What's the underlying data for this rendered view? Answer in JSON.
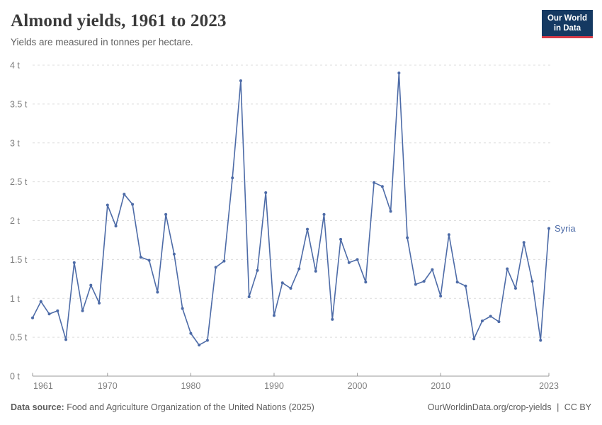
{
  "header": {
    "title": "Almond yields, 1961 to 2023",
    "subtitle": "Yields are measured in tonnes per hectare.",
    "logo": {
      "line1": "Our World",
      "line2": "in Data"
    }
  },
  "chart_data": {
    "type": "line",
    "title": "Almond yields, 1961 to 2023",
    "subtitle": "Yields are measured in tonnes per hectare.",
    "xlabel": "",
    "ylabel": "tonnes per hectare",
    "xlim": [
      1961,
      2023
    ],
    "ylim": [
      0,
      4
    ],
    "x_ticks": [
      1961,
      1970,
      1980,
      1990,
      2000,
      2010,
      2023
    ],
    "y_ticks": [
      0,
      0.5,
      1,
      1.5,
      2,
      2.5,
      3,
      3.5,
      4
    ],
    "y_tick_suffix": " t",
    "grid": "horizontal-dashed",
    "legend_position": "end-of-line-label",
    "series": [
      {
        "name": "Syria",
        "color": "#4d6ba7",
        "x": [
          1961,
          1962,
          1963,
          1964,
          1965,
          1966,
          1967,
          1968,
          1969,
          1970,
          1971,
          1972,
          1973,
          1974,
          1975,
          1976,
          1977,
          1978,
          1979,
          1980,
          1981,
          1982,
          1983,
          1984,
          1985,
          1986,
          1987,
          1988,
          1989,
          1990,
          1991,
          1992,
          1993,
          1994,
          1995,
          1996,
          1997,
          1998,
          1999,
          2000,
          2001,
          2002,
          2003,
          2004,
          2005,
          2006,
          2007,
          2008,
          2009,
          2010,
          2011,
          2012,
          2013,
          2014,
          2015,
          2016,
          2017,
          2018,
          2019,
          2020,
          2021,
          2022,
          2023
        ],
        "values": [
          0.75,
          0.96,
          0.8,
          0.84,
          0.47,
          1.46,
          0.84,
          1.17,
          0.94,
          2.2,
          1.93,
          2.34,
          2.21,
          1.53,
          1.49,
          1.08,
          2.08,
          1.57,
          0.87,
          0.55,
          0.4,
          0.46,
          1.4,
          1.48,
          2.55,
          3.8,
          1.02,
          1.36,
          2.36,
          0.78,
          1.2,
          1.13,
          1.38,
          1.89,
          1.35,
          2.08,
          0.73,
          1.76,
          1.46,
          1.5,
          1.21,
          2.49,
          2.44,
          2.12,
          3.9,
          1.78,
          1.18,
          1.22,
          1.37,
          1.03,
          1.82,
          1.21,
          1.16,
          0.48,
          0.71,
          0.77,
          0.7,
          1.38,
          1.13,
          1.72,
          1.22,
          0.46,
          1.9
        ]
      }
    ]
  },
  "footer": {
    "datasource_label": "Data source:",
    "datasource_text": "Food and Agriculture Organization of the United Nations (2025)",
    "url": "OurWorldinData.org/crop-yields",
    "divider": "|",
    "license": "CC BY"
  },
  "colors": {
    "line": "#4d6ba7",
    "grid": "#dcdcdc",
    "axis": "#999999",
    "tick_label": "#818181",
    "series_label": "#4d6ba7",
    "logo_bg": "#153962",
    "logo_red": "#d43a47"
  }
}
